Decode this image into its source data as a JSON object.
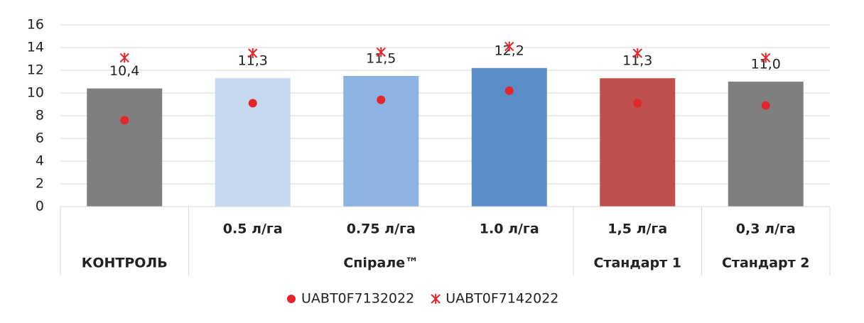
{
  "chart_data": {
    "type": "bar",
    "categories": [
      null,
      "0.5 л/га",
      "0.75 л/га",
      "1.0 л/га",
      "1,5 л/га",
      "0,3 л/га"
    ],
    "groups": [
      "КОНТРОЛЬ",
      "Спірале™",
      "Спірале™",
      "Спірале™",
      "Стандарт 1",
      "Стандарт 2"
    ],
    "values": [
      10.4,
      11.3,
      11.5,
      12.2,
      11.3,
      11.0
    ],
    "value_labels": [
      "10,4",
      "11,3",
      "11,5",
      "12,2",
      "11,3",
      "11,0"
    ],
    "colors": [
      "#7f7f7f",
      "#c6d9f1",
      "#8db3e2",
      "#5a8cc7",
      "#c0504d",
      "#7f7f7f"
    ],
    "series": [
      {
        "name": "UABT0F7132022",
        "color": "#e3262b",
        "marker": "dot",
        "values": [
          7.6,
          9.1,
          9.4,
          10.2,
          9.1,
          8.9
        ]
      },
      {
        "name": "UABT0F7142022",
        "color": "#e3262b",
        "marker": "star",
        "values": [
          13.1,
          13.5,
          13.6,
          14.1,
          13.5,
          13.1
        ]
      }
    ],
    "ylim": [
      0,
      16
    ],
    "yticks": [
      0,
      2,
      4,
      6,
      8,
      10,
      12,
      14,
      16
    ],
    "grid": true,
    "legend": "bottom"
  }
}
